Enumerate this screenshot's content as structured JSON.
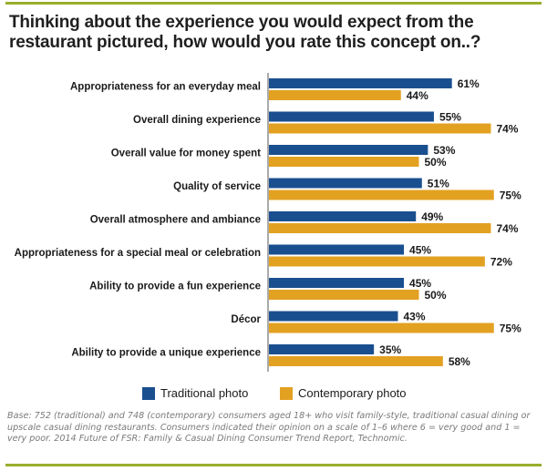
{
  "title": "Thinking about the experience you would expect from the restaurant pictured, how would you rate this concept on..?",
  "colors": {
    "traditional": "#1a4f8f",
    "contemporary": "#e3a122",
    "rule": "#9aad2d"
  },
  "legend": {
    "traditional": "Traditional photo",
    "contemporary": "Contemporary photo"
  },
  "note": "Base: 752 (traditional) and 748 (contemporary) consumers aged 18+ who visit family-style, traditional casual dining or upscale casual dining restaurants. Consumers indicated their opinion on a scale of 1–6 where 6 = very good and 1 = very poor. 2014 Future of FSR: Family & Casual Dining Consumer Trend Report, Technomic.",
  "chart_data": {
    "type": "bar",
    "orientation": "horizontal",
    "categories": [
      "Appropriateness for an everyday meal",
      "Overall dining experience",
      "Overall value for money spent",
      "Quality of service",
      "Overall atmosphere and ambiance",
      "Appropriateness for a special meal or celebration",
      "Ability to provide a fun experience",
      "Décor",
      "Ability to provide a unique experience"
    ],
    "series": [
      {
        "name": "Traditional photo",
        "values": [
          61,
          55,
          53,
          51,
          49,
          45,
          45,
          43,
          35
        ]
      },
      {
        "name": "Contemporary photo",
        "values": [
          44,
          74,
          50,
          75,
          74,
          72,
          50,
          75,
          58
        ]
      }
    ],
    "value_suffix": "%",
    "xlim": [
      0,
      100
    ],
    "grid": false,
    "legend_position": "bottom"
  }
}
